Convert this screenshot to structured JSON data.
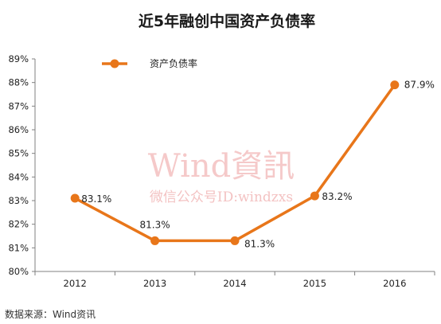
{
  "chart_data": {
    "type": "line",
    "title": "近5年融创中国资产负债率",
    "categories": [
      "2012",
      "2013",
      "2014",
      "2015",
      "2016"
    ],
    "series": [
      {
        "name": "资产负债率",
        "values": [
          83.1,
          81.3,
          81.3,
          83.2,
          87.9
        ],
        "labels": [
          "83.1%",
          "81.3%",
          "81.3%",
          "83.2%",
          "87.9%"
        ],
        "color": "#e8761a"
      }
    ],
    "y_ticks": [
      "80%",
      "81%",
      "82%",
      "83%",
      "84%",
      "85%",
      "86%",
      "87%",
      "88%",
      "89%"
    ],
    "ylim": [
      80,
      89
    ],
    "grid": false,
    "legend_position": "top-left",
    "source": "数据来源：Wind资讯",
    "watermark": {
      "main": "Wind資訊",
      "sub": "微信公众号ID:windzxs"
    }
  }
}
